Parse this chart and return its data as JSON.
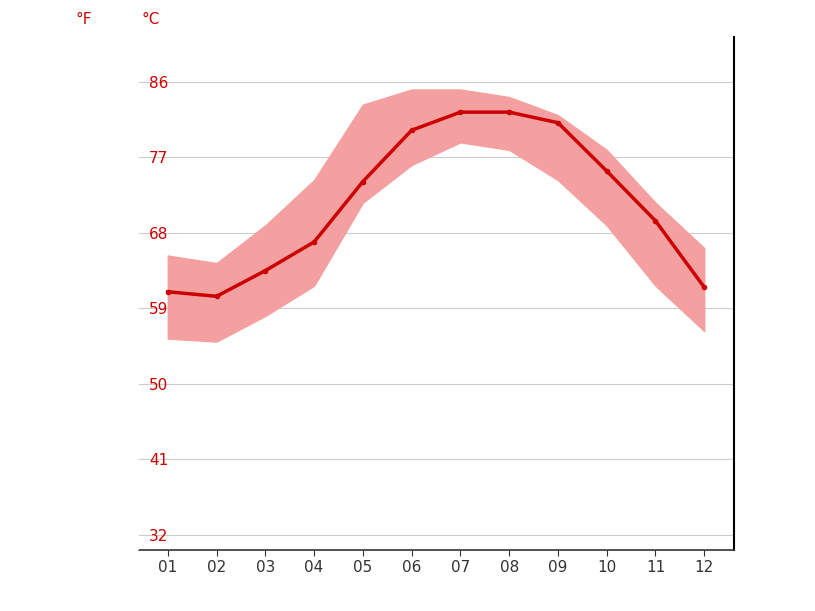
{
  "months": [
    1,
    2,
    3,
    4,
    5,
    6,
    7,
    8,
    9,
    10,
    11,
    12
  ],
  "month_labels": [
    "01",
    "02",
    "03",
    "04",
    "05",
    "06",
    "07",
    "08",
    "09",
    "10",
    "11",
    "12"
  ],
  "mean_temp": [
    16.1,
    15.8,
    17.5,
    19.4,
    23.4,
    26.8,
    28.0,
    28.0,
    27.3,
    24.1,
    20.8,
    16.4
  ],
  "temp_max": [
    18.5,
    18.0,
    20.5,
    23.5,
    28.5,
    29.5,
    29.5,
    29.0,
    27.8,
    25.5,
    22.0,
    19.0
  ],
  "temp_min": [
    13.0,
    12.8,
    14.5,
    16.5,
    22.0,
    24.5,
    26.0,
    25.5,
    23.5,
    20.5,
    16.5,
    13.5
  ],
  "yticks_c": [
    0,
    5,
    10,
    15,
    20,
    25,
    30
  ],
  "yticks_f": [
    32,
    41,
    50,
    59,
    68,
    77,
    86
  ],
  "ylim_c": [
    -1,
    33
  ],
  "xlim": [
    0.4,
    12.6
  ],
  "line_color": "#cc0000",
  "fill_color": "#f5a0a0",
  "label_color": "#cc0000",
  "grid_color": "#cccccc",
  "background_color": "#ffffff",
  "spine_color": "#333333",
  "xlabel_color": "#333333"
}
